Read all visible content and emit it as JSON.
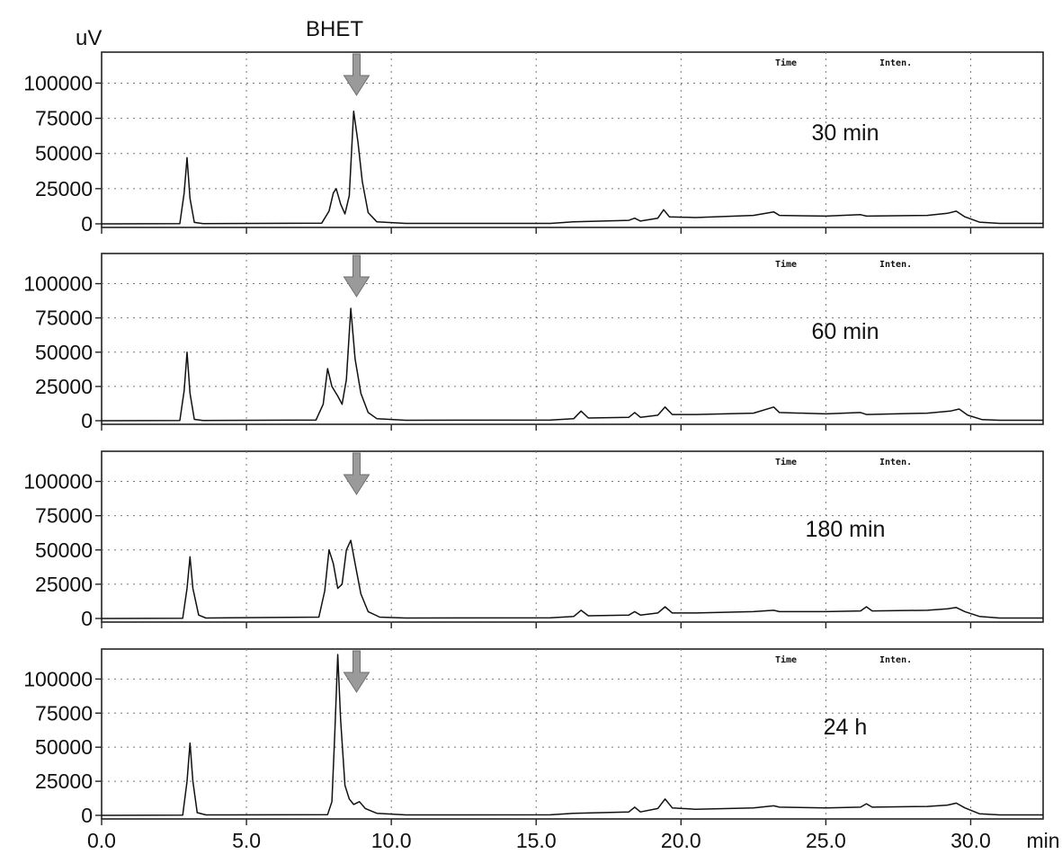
{
  "chart_data": {
    "type": "line",
    "y_unit_label": "uV",
    "x_unit_label": "min",
    "annotation": "BHET",
    "legend_headers": [
      "Time",
      "Inten."
    ],
    "xlim": [
      0,
      32.5
    ],
    "ylim": [
      0,
      122000
    ],
    "x_ticks": [
      0,
      5,
      10,
      15,
      20,
      25,
      30
    ],
    "x_tick_labels": [
      "0.0",
      "5.0",
      "10.0",
      "15.0",
      "20.0",
      "25.0",
      "30.0"
    ],
    "y_ticks": [
      0,
      25000,
      50000,
      75000,
      100000
    ],
    "y_tick_labels": [
      "0",
      "25000",
      "50000",
      "75000",
      "100000"
    ],
    "grid": true,
    "panels": [
      {
        "label": "30 min",
        "arrow_x": 8.8,
        "points": [
          [
            0,
            0
          ],
          [
            2.7,
            200
          ],
          [
            2.85,
            22000
          ],
          [
            2.95,
            47000
          ],
          [
            3.05,
            18000
          ],
          [
            3.2,
            1000
          ],
          [
            3.5,
            200
          ],
          [
            7.6,
            500
          ],
          [
            7.85,
            9000
          ],
          [
            8.0,
            22000
          ],
          [
            8.1,
            25000
          ],
          [
            8.25,
            14000
          ],
          [
            8.4,
            7000
          ],
          [
            8.55,
            20000
          ],
          [
            8.7,
            80000
          ],
          [
            8.85,
            58000
          ],
          [
            9.0,
            30000
          ],
          [
            9.2,
            8000
          ],
          [
            9.5,
            1500
          ],
          [
            10.5,
            300
          ],
          [
            15.5,
            300
          ],
          [
            16.3,
            1500
          ],
          [
            18.2,
            2500
          ],
          [
            18.4,
            4000
          ],
          [
            18.6,
            2000
          ],
          [
            19.2,
            4000
          ],
          [
            19.4,
            10000
          ],
          [
            19.6,
            5000
          ],
          [
            20.5,
            4500
          ],
          [
            22.5,
            6000
          ],
          [
            23.2,
            8500
          ],
          [
            23.4,
            6000
          ],
          [
            25.0,
            5500
          ],
          [
            26.2,
            6500
          ],
          [
            26.4,
            5500
          ],
          [
            28.5,
            6000
          ],
          [
            29.2,
            7500
          ],
          [
            29.5,
            9000
          ],
          [
            29.8,
            5000
          ],
          [
            30.3,
            1200
          ],
          [
            31.0,
            300
          ],
          [
            32.5,
            300
          ]
        ]
      },
      {
        "label": "60 min",
        "arrow_x": 8.8,
        "points": [
          [
            0,
            0
          ],
          [
            2.7,
            200
          ],
          [
            2.85,
            22000
          ],
          [
            2.95,
            50000
          ],
          [
            3.05,
            20000
          ],
          [
            3.2,
            1000
          ],
          [
            3.5,
            200
          ],
          [
            7.4,
            500
          ],
          [
            7.65,
            12000
          ],
          [
            7.8,
            38000
          ],
          [
            7.95,
            25000
          ],
          [
            8.15,
            18000
          ],
          [
            8.3,
            12000
          ],
          [
            8.45,
            30000
          ],
          [
            8.6,
            82000
          ],
          [
            8.75,
            45000
          ],
          [
            8.95,
            20000
          ],
          [
            9.2,
            6000
          ],
          [
            9.5,
            1500
          ],
          [
            10.5,
            300
          ],
          [
            15.5,
            500
          ],
          [
            16.3,
            1500
          ],
          [
            16.55,
            7000
          ],
          [
            16.8,
            2000
          ],
          [
            18.2,
            2500
          ],
          [
            18.4,
            6000
          ],
          [
            18.6,
            2500
          ],
          [
            19.2,
            4000
          ],
          [
            19.45,
            10000
          ],
          [
            19.7,
            4500
          ],
          [
            20.5,
            4500
          ],
          [
            22.5,
            5500
          ],
          [
            23.2,
            10000
          ],
          [
            23.4,
            6000
          ],
          [
            25.0,
            5000
          ],
          [
            26.2,
            6000
          ],
          [
            26.4,
            4500
          ],
          [
            28.5,
            5500
          ],
          [
            29.3,
            7000
          ],
          [
            29.6,
            8500
          ],
          [
            29.9,
            4000
          ],
          [
            30.4,
            800
          ],
          [
            31.0,
            300
          ],
          [
            32.5,
            300
          ]
        ]
      },
      {
        "label": "180 min",
        "arrow_x": 8.8,
        "points": [
          [
            0,
            0
          ],
          [
            2.8,
            200
          ],
          [
            2.95,
            22000
          ],
          [
            3.05,
            45000
          ],
          [
            3.15,
            22000
          ],
          [
            3.35,
            2500
          ],
          [
            3.6,
            300
          ],
          [
            7.5,
            1000
          ],
          [
            7.7,
            20000
          ],
          [
            7.85,
            50000
          ],
          [
            8.0,
            40000
          ],
          [
            8.15,
            22000
          ],
          [
            8.3,
            25000
          ],
          [
            8.45,
            50000
          ],
          [
            8.6,
            57000
          ],
          [
            8.75,
            40000
          ],
          [
            8.95,
            18000
          ],
          [
            9.2,
            5000
          ],
          [
            9.6,
            1000
          ],
          [
            10.5,
            300
          ],
          [
            15.5,
            500
          ],
          [
            16.3,
            1500
          ],
          [
            16.55,
            6000
          ],
          [
            16.8,
            2000
          ],
          [
            18.2,
            2500
          ],
          [
            18.4,
            5000
          ],
          [
            18.6,
            2500
          ],
          [
            19.2,
            4000
          ],
          [
            19.45,
            8500
          ],
          [
            19.7,
            4000
          ],
          [
            20.5,
            4000
          ],
          [
            22.5,
            5000
          ],
          [
            23.2,
            6000
          ],
          [
            23.4,
            5000
          ],
          [
            25.0,
            5000
          ],
          [
            26.2,
            5500
          ],
          [
            26.4,
            8500
          ],
          [
            26.6,
            5500
          ],
          [
            28.5,
            6000
          ],
          [
            29.2,
            7000
          ],
          [
            29.5,
            8000
          ],
          [
            29.8,
            5000
          ],
          [
            30.3,
            1500
          ],
          [
            31.0,
            300
          ],
          [
            32.5,
            300
          ]
        ]
      },
      {
        "label": "24 h",
        "arrow_x": 8.8,
        "points": [
          [
            0,
            0
          ],
          [
            2.8,
            200
          ],
          [
            2.95,
            25000
          ],
          [
            3.05,
            53000
          ],
          [
            3.15,
            25000
          ],
          [
            3.3,
            2000
          ],
          [
            3.6,
            300
          ],
          [
            7.8,
            500
          ],
          [
            7.95,
            10000
          ],
          [
            8.05,
            60000
          ],
          [
            8.15,
            118000
          ],
          [
            8.25,
            70000
          ],
          [
            8.4,
            22000
          ],
          [
            8.55,
            12000
          ],
          [
            8.7,
            8000
          ],
          [
            8.9,
            10000
          ],
          [
            9.1,
            5000
          ],
          [
            9.5,
            1500
          ],
          [
            10.5,
            300
          ],
          [
            15.5,
            400
          ],
          [
            16.3,
            1500
          ],
          [
            18.2,
            2500
          ],
          [
            18.4,
            6000
          ],
          [
            18.6,
            2500
          ],
          [
            19.2,
            5000
          ],
          [
            19.45,
            12000
          ],
          [
            19.7,
            5500
          ],
          [
            20.5,
            4500
          ],
          [
            22.5,
            5500
          ],
          [
            23.2,
            7000
          ],
          [
            23.4,
            6000
          ],
          [
            25.0,
            5500
          ],
          [
            26.2,
            6000
          ],
          [
            26.4,
            8500
          ],
          [
            26.6,
            6000
          ],
          [
            28.5,
            6500
          ],
          [
            29.2,
            7500
          ],
          [
            29.5,
            9000
          ],
          [
            29.8,
            5500
          ],
          [
            30.3,
            1200
          ],
          [
            31.0,
            300
          ],
          [
            32.5,
            300
          ]
        ]
      }
    ]
  }
}
